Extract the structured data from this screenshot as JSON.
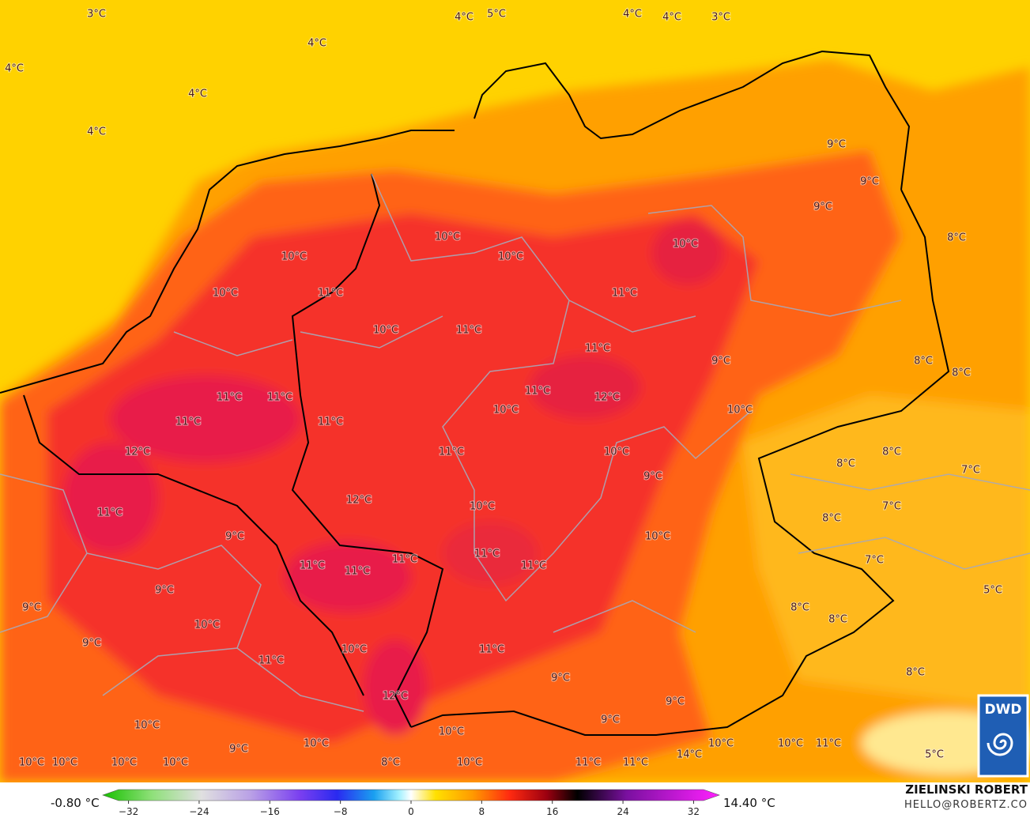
{
  "map": {
    "labels": [
      "3°C",
      "4°C",
      "5°C",
      "4°C",
      "4°C",
      "3°C",
      "4°C",
      "4°C",
      "4°C",
      "4°C",
      "9°C",
      "9°C",
      "9°C",
      "8°C",
      "10°C",
      "10°C",
      "10°C",
      "10°C",
      "10°C",
      "11°C",
      "11°C",
      "10°C",
      "11°C",
      "11°C",
      "9°C",
      "8°C",
      "8°C",
      "11°C",
      "11°C",
      "11°C",
      "12°C",
      "10°C",
      "10°C",
      "11°C",
      "11°C",
      "12°C",
      "11°C",
      "10°C",
      "8°C",
      "8°C",
      "9°C",
      "7°C",
      "12°C",
      "10°C",
      "7°C",
      "8°C",
      "11°C",
      "9°C",
      "10°C",
      "11°C",
      "11°C",
      "11°C",
      "11°C",
      "11°C",
      "7°C",
      "9°C",
      "5°C",
      "9°C",
      "8°C",
      "10°C",
      "8°C",
      "9°C",
      "11°C",
      "10°C",
      "11°C",
      "9°C",
      "8°C",
      "12°C",
      "9°C",
      "9°C",
      "10°C",
      "9°C",
      "10°C",
      "10°C",
      "10°C",
      "14°C",
      "10°C",
      "11°C",
      "5°C",
      "10°C",
      "10°C",
      "10°C",
      "10°C",
      "8°C",
      "10°C",
      "11°C",
      "11°C"
    ]
  },
  "colorbar": {
    "min_label": "-0.80 °C",
    "max_label": "14.40 °C",
    "ticks": [
      {
        "value": -32,
        "label": "−32"
      },
      {
        "value": -24,
        "label": "−24"
      },
      {
        "value": -16,
        "label": "−16"
      },
      {
        "value": -8,
        "label": "−8"
      },
      0,
      8,
      16,
      24,
      32
    ]
  },
  "credit": {
    "name": "ZIELINSKI ROBERT",
    "email": "HELLO@ROBERTZ.CO"
  },
  "logo": {
    "text": "DWD"
  }
}
